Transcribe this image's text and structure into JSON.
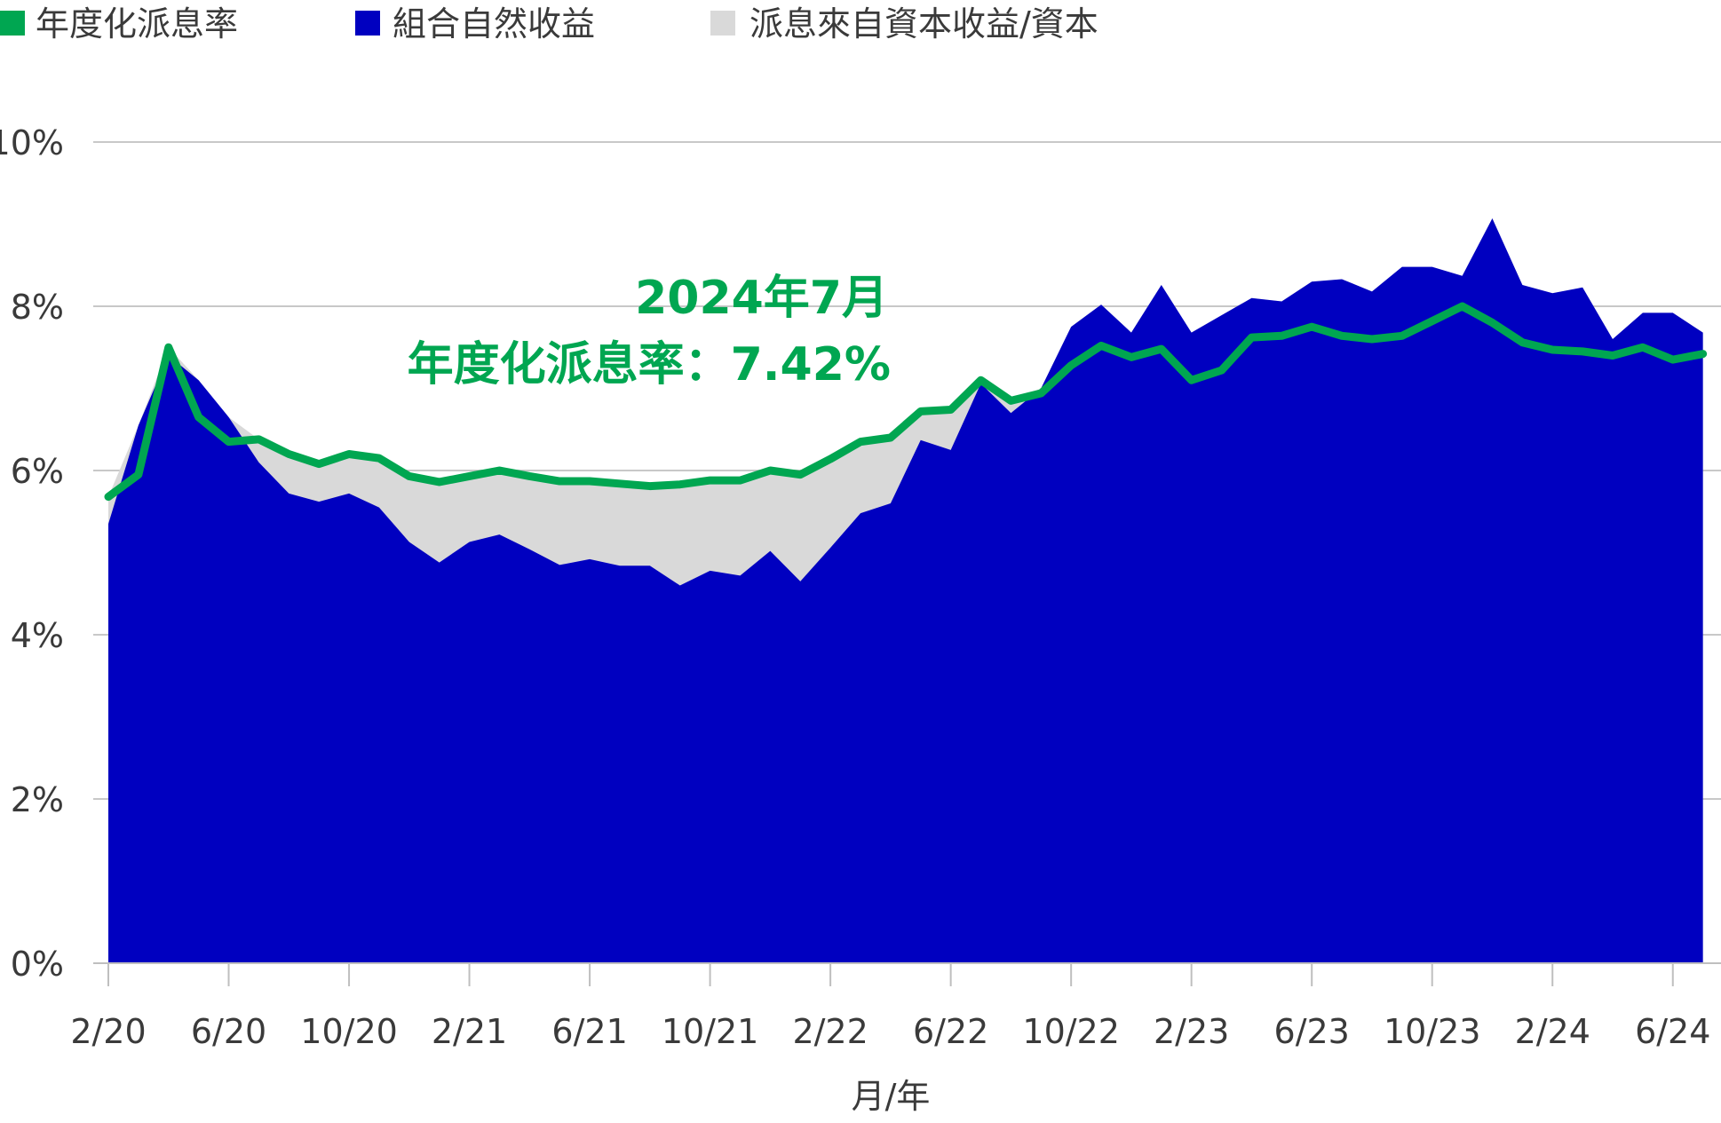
{
  "chart_data": {
    "type": "area",
    "xlabel": "月/年",
    "ylabel": "",
    "ylim": [
      0,
      10
    ],
    "yticks": [
      "0%",
      "2%",
      "4%",
      "6%",
      "8%",
      "10%"
    ],
    "x_tick_labels": [
      "2/20",
      "6/20",
      "10/20",
      "2/21",
      "6/21",
      "10/21",
      "2/22",
      "6/22",
      "10/22",
      "2/23",
      "6/23",
      "10/23",
      "2/24",
      "6/24"
    ],
    "grid": true,
    "legend": {
      "placement": "top-left",
      "items": [
        {
          "label": "年度化派息率",
          "color": "#00a651"
        },
        {
          "label": "組合自然收益",
          "color": "#0000c0"
        },
        {
          "label": "派息來自資本收益/資本",
          "color": "#d9d9d9"
        }
      ]
    },
    "annotation": {
      "line1": "2024年7月",
      "line2": "年度化派息率：7.42%"
    },
    "series": [
      {
        "name": "年度化派息率",
        "kind": "line",
        "color": "#00a651",
        "values": [
          5.68,
          5.95,
          7.5,
          6.65,
          6.35,
          6.38,
          6.2,
          6.08,
          6.2,
          6.15,
          5.93,
          5.86,
          5.93,
          6.0,
          5.93,
          5.87,
          5.87,
          5.84,
          5.81,
          5.83,
          5.88,
          5.88,
          6.0,
          5.95,
          6.14,
          6.35,
          6.4,
          6.72,
          6.74,
          7.1,
          6.85,
          6.94,
          7.28,
          7.52,
          7.38,
          7.48,
          7.1,
          7.22,
          7.62,
          7.64,
          7.75,
          7.64,
          7.6,
          7.64,
          7.82,
          8.0,
          7.8,
          7.56,
          7.47,
          7.45,
          7.4,
          7.5,
          7.35,
          7.42
        ]
      },
      {
        "name": "組合自然收益",
        "kind": "area",
        "color": "#0000c0",
        "values": [
          5.35,
          6.55,
          7.4,
          7.1,
          6.65,
          6.1,
          5.72,
          5.62,
          5.72,
          5.55,
          5.13,
          4.88,
          5.13,
          5.22,
          5.04,
          4.85,
          4.92,
          4.84,
          4.84,
          4.6,
          4.78,
          4.72,
          5.02,
          4.65,
          5.06,
          5.48,
          5.6,
          6.37,
          6.25,
          7.06,
          6.7,
          7.0,
          7.75,
          8.02,
          7.68,
          8.26,
          7.68,
          7.89,
          8.1,
          8.06,
          8.3,
          8.33,
          8.18,
          8.48,
          8.48,
          8.37,
          9.07,
          8.26,
          8.16,
          8.23,
          7.6,
          7.92,
          7.92,
          7.68
        ]
      },
      {
        "name": "派息來自資本收益/資本",
        "kind": "area",
        "color": "#d9d9d9"
      }
    ]
  }
}
